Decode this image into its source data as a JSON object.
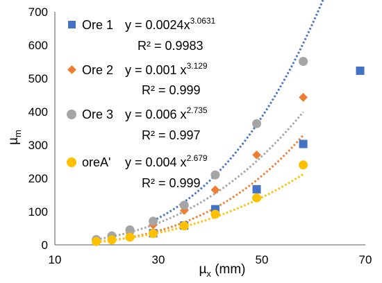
{
  "chart_data": {
    "type": "scatter",
    "xlabel": {
      "mu": "µ",
      "sub": "x",
      "unit": " (mm)"
    },
    "ylabel": {
      "mu": "µ",
      "sub": "m"
    },
    "xlim": [
      10,
      70
    ],
    "ylim": [
      0,
      700
    ],
    "xticks": [
      10,
      30,
      50,
      70
    ],
    "yticks": [
      0,
      100,
      200,
      300,
      400,
      500,
      600,
      700
    ],
    "grid": false,
    "legend_position": "top-left, inside plot",
    "series": [
      {
        "name": "Ore 1",
        "color": "#4472C4",
        "marker": "square",
        "fit": {
          "a": 0.0024,
          "b": 3.0631,
          "x_range": [
            29,
            69
          ]
        },
        "equation": {
          "prefix": "y = 0.0024x",
          "exp": "3.0631"
        },
        "r2": "R² = 0.9983",
        "x": [
          29,
          35,
          41,
          49,
          58,
          69
        ],
        "y": [
          35,
          58,
          107,
          167,
          303,
          523
        ]
      },
      {
        "name": "Ore 2",
        "color": "#ED7D31",
        "marker": "diamond",
        "fit": {
          "a": 0.001,
          "b": 3.129,
          "x_range": [
            18,
            58
          ]
        },
        "equation": {
          "prefix": "y = 0.001 x",
          "exp": "3.129"
        },
        "r2": "R² = 0.999",
        "x": [
          18,
          21,
          24.5,
          29,
          35,
          41,
          49,
          58
        ],
        "y": [
          16,
          24,
          36,
          60,
          103,
          165,
          270,
          443
        ]
      },
      {
        "name": "Ore 3",
        "color": "#A5A5A5",
        "marker": "circle",
        "fit": {
          "a": 0.006,
          "b": 2.735,
          "x_range": [
            18,
            58
          ]
        },
        "equation": {
          "prefix": "y = 0.006 x",
          "exp": "2.735"
        },
        "r2": "R² = 0.997",
        "x": [
          18,
          21,
          24.5,
          29,
          35,
          41,
          49,
          58
        ],
        "y": [
          16,
          27,
          45,
          71,
          119,
          210,
          364,
          551
        ]
      },
      {
        "name": "oreA'",
        "color": "#FFC000",
        "marker": "circle",
        "fit": {
          "a": 0.004,
          "b": 2.679,
          "x_range": [
            18,
            58
          ]
        },
        "equation": {
          "prefix": "y = 0.004 x",
          "exp": "2.679"
        },
        "r2": "R² = 0.999",
        "x": [
          18,
          21,
          24.5,
          29,
          35,
          41,
          49,
          58
        ],
        "y": [
          10,
          15,
          23,
          34,
          57,
          92,
          141,
          240
        ]
      }
    ]
  }
}
